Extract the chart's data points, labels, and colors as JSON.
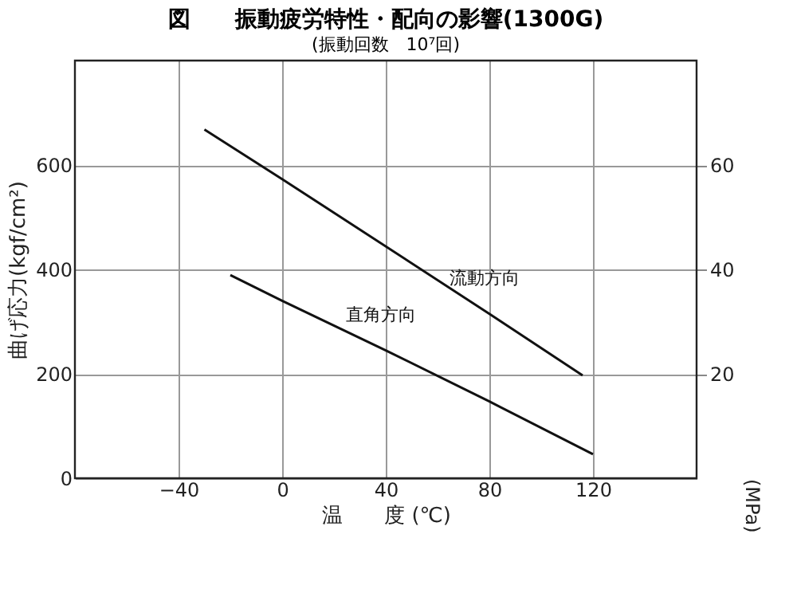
{
  "chart_data": {
    "type": "line",
    "title": "図　　振動疲労特性・配向の影響(1300G)",
    "subtitle": "(振動回数　10⁷回)",
    "xlabel": "温　　度 (℃)",
    "ylabel": "曲げ応力(kgf/cm²)",
    "y2label": "(MPa)",
    "series": [
      {
        "name": "流動方向",
        "color": "#111111",
        "x": [
          -30,
          0,
          80,
          116
        ],
        "values": [
          668,
          573,
          315,
          197
        ]
      },
      {
        "name": "直角方向",
        "color": "#111111",
        "x": [
          -20,
          0,
          40,
          80,
          120
        ],
        "values": [
          389,
          340,
          245,
          147,
          46
        ]
      }
    ],
    "xlim": [
      -80,
      160
    ],
    "xticks": [
      -40,
      0,
      40,
      80,
      120
    ],
    "ylim": [
      0,
      800
    ],
    "yticks": [
      0,
      200,
      400,
      600
    ],
    "y2lim": [
      0,
      80
    ],
    "y2ticks": [
      20,
      40,
      60
    ],
    "grid": true,
    "legend": false,
    "marker": "none",
    "line_style": "solid"
  }
}
